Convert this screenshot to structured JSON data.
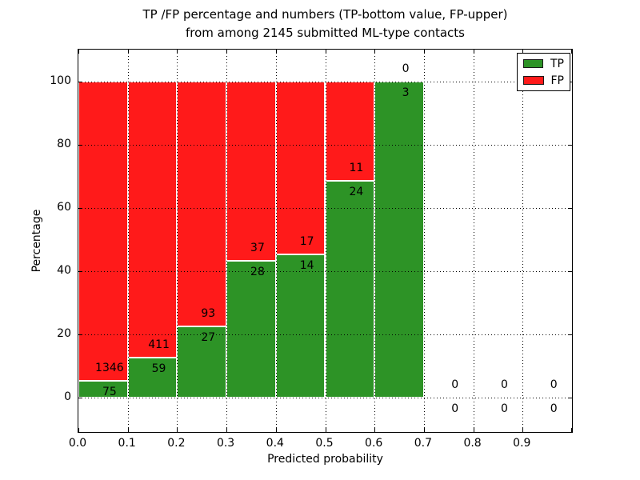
{
  "chart_data": {
    "type": "bar",
    "stacked": true,
    "normalized_to_percent": true,
    "title_line1": "TP /FP percentage and numbers (TP-bottom value, FP-upper)",
    "title_line2": "from among 2145 submitted ML-type contacts",
    "xlabel": "Predicted probability",
    "ylabel": "Percentage",
    "xlim": [
      0.0,
      1.0
    ],
    "ylim": [
      -11,
      110
    ],
    "xticks": [
      0.0,
      0.1,
      0.2,
      0.3,
      0.4,
      0.5,
      0.6,
      0.7,
      0.8,
      0.9
    ],
    "yticks": [
      0,
      20,
      40,
      60,
      80,
      100
    ],
    "grid": "dotted",
    "colors": {
      "tp": "#2D9326",
      "fp": "#FF1A1A"
    },
    "legend": {
      "position": "upper right",
      "items": [
        {
          "name": "tp",
          "label": "TP",
          "color": "#2D9326"
        },
        {
          "name": "fp",
          "label": "FP",
          "color": "#FF1A1A"
        }
      ]
    },
    "bins": [
      {
        "range": [
          0.0,
          0.1
        ],
        "tp": 75,
        "fp": 1346
      },
      {
        "range": [
          0.1,
          0.2
        ],
        "tp": 59,
        "fp": 411
      },
      {
        "range": [
          0.2,
          0.3
        ],
        "tp": 27,
        "fp": 93
      },
      {
        "range": [
          0.3,
          0.4
        ],
        "tp": 28,
        "fp": 37
      },
      {
        "range": [
          0.4,
          0.5
        ],
        "tp": 14,
        "fp": 17
      },
      {
        "range": [
          0.5,
          0.6
        ],
        "tp": 24,
        "fp": 11
      },
      {
        "range": [
          0.6,
          0.7
        ],
        "tp": 3,
        "fp": 0
      },
      {
        "range": [
          0.7,
          0.8
        ],
        "tp": 0,
        "fp": 0
      },
      {
        "range": [
          0.8,
          0.9
        ],
        "tp": 0,
        "fp": 0
      },
      {
        "range": [
          0.9,
          1.0
        ],
        "tp": 0,
        "fp": 0
      }
    ]
  }
}
